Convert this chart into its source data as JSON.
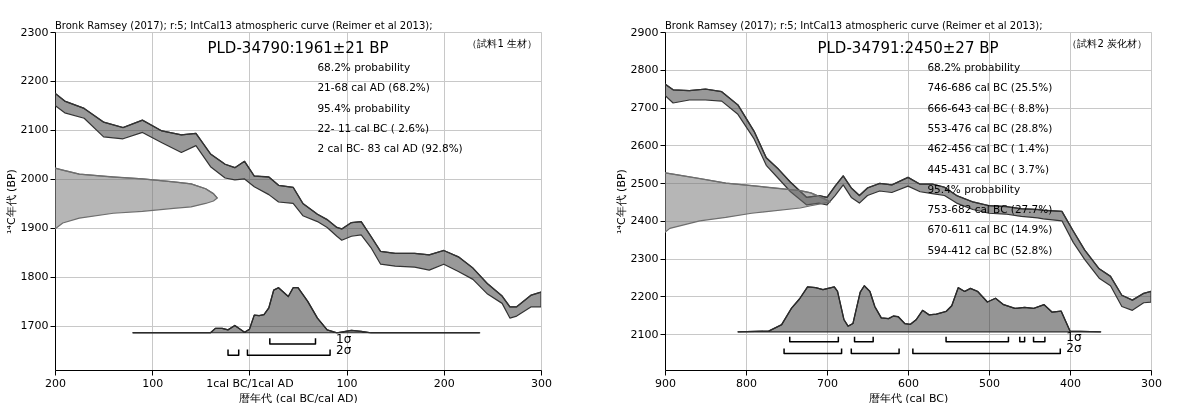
{
  "chart_data": [
    {
      "type": "line",
      "title": "PLD-34790:1961±21 BP",
      "xlabel": "暦年代 (cal BC/cal AD)",
      "ylabel": "¹⁴C年代 (BP)",
      "xlim": [
        -200,
        300
      ],
      "ylim": [
        1610,
        2300
      ],
      "xticks": [
        {
          "value": -200,
          "label": "200"
        },
        {
          "value": -100,
          "label": "100"
        },
        {
          "value": 0,
          "label": "1cal BC/1cal AD"
        },
        100,
        200,
        300
      ],
      "yticks": [
        1700,
        1800,
        1900,
        2000,
        2100,
        2200,
        2300
      ],
      "grid": true,
      "annotations": [
        "Bronk Ramsey (2017); r:5; IntCal13 atmospheric curve (Reimer et al 2013);",
        "（試料1 生材）",
        "68.2% probability",
        "21-68 cal AD (68.2%)",
        "95.4% probability",
        "22- 11 cal BC ( 2.6%)",
        "2 cal BC- 83 cal AD (92.8%)"
      ],
      "series": [
        {
          "color": "#333333",
          "x": [
            -200,
            -190,
            -170,
            -150,
            -130,
            -110,
            -90,
            -70,
            -55,
            -40,
            -25,
            -15,
            -5,
            5,
            20,
            30,
            45,
            55,
            70,
            80,
            90,
            95,
            105,
            115,
            125,
            135,
            150,
            170,
            185,
            200,
            215,
            230,
            245,
            260,
            268,
            275,
            290,
            300
          ],
          "values": [
            2175,
            2159,
            2144,
            2116,
            2105,
            2120,
            2098,
            2090,
            2093,
            2051,
            2030,
            2023,
            2036,
            2006,
            2004,
            1987,
            1983,
            1950,
            1928,
            1917,
            1901,
            1898,
            1911,
            1913,
            1883,
            1852,
            1848,
            1848,
            1845,
            1854,
            1841,
            1818,
            1786,
            1761,
            1739,
            1739,
            1763,
            1769
          ],
          "upper": [
            2175,
            2159,
            2144,
            2116,
            2105,
            2120,
            2098,
            2090,
            2093,
            2051,
            2030,
            2023,
            2036,
            2006,
            2004,
            1987,
            1983,
            1950,
            1928,
            1917,
            1901,
            1898,
            1911,
            1913,
            1883,
            1852,
            1848,
            1848,
            1845,
            1854,
            1841,
            1818,
            1786,
            1761,
            1739,
            1739,
            1763,
            1769
          ],
          "lower": [
            2150,
            2135,
            2124,
            2086,
            2082,
            2095,
            2074,
            2054,
            2068,
            2025,
            2002,
            1998,
            2000,
            1984,
            1968,
            1953,
            1950,
            1925,
            1913,
            1901,
            1883,
            1875,
            1883,
            1886,
            1860,
            1826,
            1822,
            1820,
            1814,
            1826,
            1811,
            1795,
            1765,
            1746,
            1716,
            1720,
            1739,
            1739
          ]
        },
        {
          "color": "#2b2b2b",
          "x": [
            -120,
            -40,
            -35,
            -28,
            -22,
            -15,
            -5,
            0,
            5,
            10,
            15,
            20,
            25,
            30,
            40,
            45,
            50,
            60,
            70,
            80,
            90,
            105,
            115,
            125,
            237
          ],
          "values": [
            1686,
            1686,
            1695,
            1695,
            1692,
            1701,
            1687,
            1693,
            1722,
            1721,
            1723,
            1737,
            1773,
            1778,
            1760,
            1778,
            1778,
            1750,
            1716,
            1692,
            1686,
            1691,
            1689,
            1686,
            1686
          ],
          "upper": [
            1686,
            1686,
            1695,
            1695,
            1692,
            1701,
            1687,
            1693,
            1722,
            1721,
            1723,
            1737,
            1773,
            1778,
            1760,
            1778,
            1778,
            1750,
            1716,
            1692,
            1686,
            1691,
            1689,
            1686,
            1686
          ],
          "lower": [
            1686,
            1686,
            1686,
            1686,
            1686,
            1686,
            1686,
            1686,
            1686,
            1686,
            1686,
            1686,
            1686,
            1686,
            1686,
            1686,
            1686,
            1686,
            1686,
            1686,
            1686,
            1686,
            1686,
            1686,
            1686
          ]
        },
        {
          "color": "#6e6e6e",
          "x": [
            -200,
            -192,
            -175,
            -140,
            -110,
            -78,
            -60,
            -45,
            -37,
            -33
          ],
          "values": [
            2022,
            2018,
            2010,
            2004,
            2000,
            1994,
            1990,
            1980,
            1970,
            1961
          ],
          "upper": [
            2022,
            2018,
            2010,
            2004,
            2000,
            1994,
            1990,
            1980,
            1970,
            1961
          ],
          "lower": [
            1898,
            1910,
            1920,
            1930,
            1934,
            1940,
            1943,
            1950,
            1955,
            1961
          ]
        },
        {
          "name": "1σ",
          "color": "#000000",
          "x": [
            21,
            21,
            68,
            68
          ],
          "values": [
            1675,
            1663,
            1663,
            1675
          ]
        },
        {
          "name": "2σ",
          "color": "#000000",
          "x": [
            -22,
            -22,
            -11,
            -11
          ],
          "values": [
            1652,
            1640,
            1640,
            1652
          ]
        },
        {
          "color": "#000000",
          "x": [
            -2,
            -2,
            83,
            83
          ],
          "values": [
            1652,
            1640,
            1640,
            1652
          ]
        }
      ]
    },
    {
      "type": "line",
      "title": "PLD-34791:2450±27 BP",
      "xlabel": "暦年代 (cal BC)",
      "ylabel": "¹⁴C年代 (BP)",
      "xlim": [
        -900,
        -300
      ],
      "ylim": [
        2005,
        2900
      ],
      "xticks": [
        {
          "value": -900,
          "label": "900"
        },
        {
          "value": -800,
          "label": "800"
        },
        {
          "value": -700,
          "label": "700"
        },
        {
          "value": -600,
          "label": "600"
        },
        {
          "value": -500,
          "label": "500"
        },
        {
          "value": -400,
          "label": "400"
        },
        {
          "value": -300,
          "label": "300"
        }
      ],
      "yticks": [
        2100,
        2200,
        2300,
        2400,
        2500,
        2600,
        2700,
        2800,
        2900
      ],
      "grid": true,
      "annotations": [
        "Bronk Ramsey (2017); r:5; IntCal13 atmospheric curve (Reimer et al 2013);",
        "（試料2 炭化材）",
        "68.2% probability",
        "746-686 cal BC (25.5%)",
        "666-643 cal BC ( 8.8%)",
        "553-476 cal BC (28.8%)",
        "462-456 cal BC ( 1.4%)",
        "445-431 cal BC ( 3.7%)",
        "95.4% probability",
        "753-682 cal BC (27.7%)",
        "670-611 cal BC (14.9%)",
        "594-412 cal BC (52.8%)"
      ],
      "series": [
        {
          "color": "#333333",
          "x": [
            -900,
            -890,
            -870,
            -850,
            -830,
            -810,
            -790,
            -775,
            -760,
            -745,
            -725,
            -710,
            -700,
            -690,
            -680,
            -670,
            -660,
            -650,
            -635,
            -620,
            -600,
            -585,
            -570,
            -555,
            -540,
            -520,
            -500,
            -480,
            -460,
            -440,
            -433,
            -410,
            -396,
            -382,
            -364,
            -350,
            -336,
            -323,
            -309,
            -300
          ],
          "values": [
            2762,
            2747,
            2745,
            2749,
            2742,
            2707,
            2637,
            2567,
            2537,
            2502,
            2462,
            2467,
            2462,
            2492,
            2519,
            2487,
            2467,
            2487,
            2499,
            2495,
            2515,
            2497,
            2497,
            2489,
            2467,
            2450,
            2440,
            2438,
            2432,
            2430,
            2428,
            2425,
            2373,
            2323,
            2273,
            2253,
            2203,
            2190,
            2208,
            2213
          ],
          "upper": [
            2762,
            2747,
            2745,
            2749,
            2742,
            2707,
            2637,
            2567,
            2537,
            2502,
            2462,
            2467,
            2462,
            2492,
            2519,
            2487,
            2467,
            2487,
            2499,
            2495,
            2515,
            2497,
            2497,
            2489,
            2467,
            2450,
            2440,
            2438,
            2432,
            2430,
            2428,
            2425,
            2373,
            2323,
            2273,
            2253,
            2203,
            2190,
            2208,
            2213
          ],
          "lower": [
            2732,
            2712,
            2720,
            2720,
            2717,
            2682,
            2617,
            2547,
            2512,
            2477,
            2442,
            2447,
            2442,
            2467,
            2495,
            2462,
            2447,
            2467,
            2479,
            2475,
            2492,
            2477,
            2472,
            2467,
            2447,
            2430,
            2420,
            2418,
            2412,
            2408,
            2405,
            2400,
            2343,
            2298,
            2248,
            2228,
            2173,
            2163,
            2183,
            2185
          ]
        },
        {
          "color": "#2b2b2b",
          "x": [
            -810,
            -772,
            -756,
            -744,
            -734,
            -724,
            -714,
            -705,
            -691,
            -687,
            -679,
            -674,
            -668,
            -659,
            -654,
            -647,
            -641,
            -633,
            -624,
            -618,
            -612,
            -604,
            -597,
            -590,
            -582,
            -574,
            -565,
            -553,
            -546,
            -538,
            -530,
            -523,
            -514,
            -502,
            -492,
            -482,
            -468,
            -456,
            -445,
            -432,
            -422,
            -411,
            -400,
            -362
          ],
          "values": [
            2106,
            2108,
            2125,
            2168,
            2193,
            2225,
            2223,
            2218,
            2225,
            2213,
            2138,
            2121,
            2128,
            2211,
            2228,
            2213,
            2173,
            2143,
            2141,
            2148,
            2146,
            2128,
            2126,
            2138,
            2163,
            2151,
            2153,
            2160,
            2175,
            2223,
            2213,
            2221,
            2213,
            2185,
            2195,
            2178,
            2168,
            2171,
            2168,
            2178,
            2158,
            2161,
            2108,
            2106
          ],
          "upper": [
            2106,
            2108,
            2125,
            2168,
            2193,
            2225,
            2223,
            2218,
            2225,
            2213,
            2138,
            2121,
            2128,
            2211,
            2228,
            2213,
            2173,
            2143,
            2141,
            2148,
            2146,
            2128,
            2126,
            2138,
            2163,
            2151,
            2153,
            2160,
            2175,
            2223,
            2213,
            2221,
            2213,
            2185,
            2195,
            2178,
            2168,
            2171,
            2168,
            2178,
            2158,
            2161,
            2108,
            2106
          ],
          "lower": [
            2106,
            2106,
            2106,
            2106,
            2106,
            2106,
            2106,
            2106,
            2106,
            2106,
            2106,
            2106,
            2106,
            2106,
            2106,
            2106,
            2106,
            2106,
            2106,
            2106,
            2106,
            2106,
            2106,
            2106,
            2106,
            2106,
            2106,
            2106,
            2106,
            2106,
            2106,
            2106,
            2106,
            2106,
            2106,
            2106,
            2106,
            2106,
            2106,
            2106,
            2106,
            2106,
            2106,
            2106
          ]
        },
        {
          "color": "#6e6e6e",
          "x": [
            -900,
            -894,
            -857,
            -825,
            -793,
            -733,
            -720,
            -705,
            -696
          ],
          "values": [
            2527,
            2525,
            2512,
            2500,
            2493,
            2480,
            2474,
            2460,
            2450
          ],
          "upper": [
            2527,
            2525,
            2512,
            2500,
            2493,
            2480,
            2474,
            2460,
            2450
          ],
          "lower": [
            2370,
            2380,
            2400,
            2409,
            2420,
            2434,
            2440,
            2446,
            2450
          ]
        },
        {
          "name": "1σ",
          "color": "#000000",
          "x": [
            -746,
            -746,
            -686,
            -686
          ],
          "values": [
            2093,
            2080,
            2080,
            2093
          ]
        },
        {
          "color": "#000000",
          "x": [
            -666,
            -666,
            -643,
            -643
          ],
          "values": [
            2093,
            2080,
            2080,
            2093
          ]
        },
        {
          "color": "#000000",
          "x": [
            -553,
            -553,
            -476,
            -476
          ],
          "values": [
            2093,
            2080,
            2080,
            2093
          ]
        },
        {
          "color": "#000000",
          "x": [
            -462,
            -462,
            -456,
            -456
          ],
          "values": [
            2093,
            2080,
            2080,
            2093
          ]
        },
        {
          "color": "#000000",
          "x": [
            -445,
            -445,
            -431,
            -431
          ],
          "values": [
            2093,
            2080,
            2080,
            2093
          ]
        },
        {
          "name": "2σ",
          "color": "#000000",
          "x": [
            -753,
            -753,
            -682,
            -682
          ],
          "values": [
            2062,
            2049,
            2049,
            2062
          ]
        },
        {
          "color": "#000000",
          "x": [
            -670,
            -670,
            -611,
            -611
          ],
          "values": [
            2062,
            2049,
            2049,
            2062
          ]
        },
        {
          "color": "#000000",
          "x": [
            -594,
            -594,
            -412,
            -412
          ],
          "values": [
            2062,
            2049,
            2049,
            2062
          ]
        }
      ]
    }
  ]
}
